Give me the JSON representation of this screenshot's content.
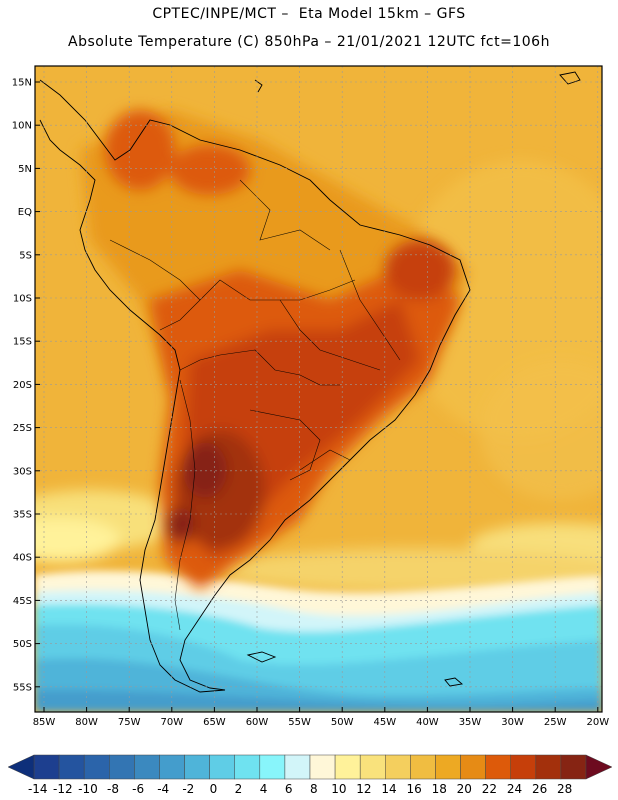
{
  "header": {
    "line1": "CPTEC/INPE/MCT –  Eta Model 15km – GFS",
    "line2": "Absolute Temperature (C) 850hPa – 21/01/2021 12UTC fct=106h"
  },
  "map": {
    "lat_labels": [
      "15N",
      "10N",
      "5N",
      "EQ",
      "5S",
      "10S",
      "15S",
      "20S",
      "25S",
      "30S",
      "35S",
      "40S",
      "45S",
      "50S",
      "55S"
    ],
    "lon_labels": [
      "85W",
      "80W",
      "75W",
      "70W",
      "65W",
      "60W",
      "55W",
      "50W",
      "45W",
      "40W",
      "35W",
      "30W",
      "25W",
      "20W"
    ]
  },
  "colorbar": {
    "labels": [
      "-14",
      "-12",
      "-10",
      "-8",
      "-6",
      "-4",
      "-2",
      "0",
      "2",
      "4",
      "6",
      "8",
      "10",
      "12",
      "14",
      "16",
      "18",
      "20",
      "22",
      "24",
      "26",
      "28"
    ],
    "low_color": "#0e2f7a",
    "high_color": "#6d0b1f",
    "colors": [
      "#1d3f8f",
      "#24549f",
      "#2b64aa",
      "#3375b3",
      "#3b89bf",
      "#449dcc",
      "#4fb4d9",
      "#5fcde6",
      "#6fe2f0",
      "#88f5fb",
      "#d2f5f9",
      "#fff7d8",
      "#fff29a",
      "#f9e27c",
      "#f4cf5e",
      "#f0bd41",
      "#eda923",
      "#e68b15",
      "#dd5a0a",
      "#c63f0a",
      "#a3300c",
      "#862413"
    ]
  }
}
